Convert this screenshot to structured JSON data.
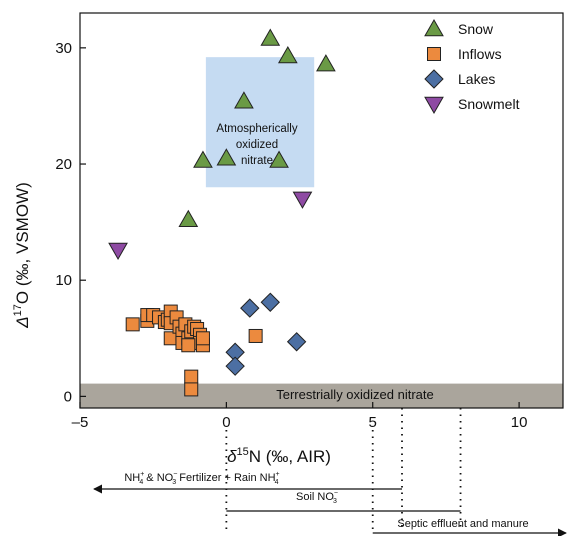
{
  "chart_data": {
    "type": "scatter",
    "xlim": [
      -5,
      11.5
    ],
    "ylim": [
      -1,
      33
    ],
    "x_ticks": [
      -5,
      0,
      5,
      10
    ],
    "y_ticks": [
      0,
      10,
      20,
      30
    ],
    "x_tick_labels": [
      "–5",
      "0",
      "5",
      "10"
    ],
    "y_tick_labels": [
      "0",
      "10",
      "20",
      "30"
    ],
    "xlabel_prefix": "δ",
    "xlabel_sup": "15",
    "xlabel_rest": "N (‰, AIR)",
    "ylabel_prefix": "Δ",
    "ylabel_sup": "17",
    "ylabel_rest": "O (‰, VSMOW)",
    "grid": false,
    "legend_position": "top-right",
    "series": [
      {
        "name": "Snow",
        "marker": "triangle-up",
        "color": "#6a9a45",
        "points": [
          [
            1.5,
            30.8
          ],
          [
            2.1,
            29.3
          ],
          [
            3.4,
            28.6
          ],
          [
            0.6,
            25.4
          ],
          [
            -0.8,
            20.3
          ],
          [
            0.0,
            20.5
          ],
          [
            1.8,
            20.3
          ],
          [
            -1.3,
            15.2
          ]
        ]
      },
      {
        "name": "Inflows",
        "marker": "square",
        "color": "#ec8a3e",
        "points": [
          [
            -3.2,
            6.2
          ],
          [
            -2.7,
            6.5
          ],
          [
            -2.7,
            7.0
          ],
          [
            -2.5,
            7.0
          ],
          [
            -2.3,
            6.8
          ],
          [
            -2.1,
            6.4
          ],
          [
            -2.0,
            6.6
          ],
          [
            -1.9,
            7.3
          ],
          [
            -1.9,
            6.3
          ],
          [
            -1.9,
            5.0
          ],
          [
            -1.7,
            6.8
          ],
          [
            -1.6,
            6.0
          ],
          [
            -1.5,
            5.4
          ],
          [
            -1.5,
            4.6
          ],
          [
            -1.4,
            6.2
          ],
          [
            -1.3,
            5.0
          ],
          [
            -1.2,
            5.6
          ],
          [
            -1.1,
            6.0
          ],
          [
            -1.0,
            5.8
          ],
          [
            -0.9,
            5.3
          ],
          [
            -0.9,
            4.6
          ],
          [
            -0.8,
            4.4
          ],
          [
            -0.8,
            5.0
          ],
          [
            -1.3,
            4.4
          ],
          [
            -1.2,
            1.7
          ],
          [
            -1.2,
            0.6
          ],
          [
            1.0,
            5.2
          ]
        ]
      },
      {
        "name": "Lakes",
        "marker": "diamond",
        "color": "#4c6fa3",
        "points": [
          [
            0.8,
            7.6
          ],
          [
            1.5,
            8.1
          ],
          [
            0.3,
            3.8
          ],
          [
            0.3,
            2.6
          ],
          [
            2.4,
            4.7
          ]
        ]
      },
      {
        "name": "Snowmelt",
        "marker": "triangle-down",
        "color": "#8e4aa3",
        "points": [
          [
            -3.7,
            12.6
          ],
          [
            2.6,
            17.0
          ]
        ]
      }
    ],
    "boxes": [
      {
        "label_lines": [
          "Atmospherically",
          "oxidized",
          "nitrate"
        ],
        "x": [
          -0.7,
          3.0
        ],
        "y": [
          18.0,
          29.2
        ],
        "color": "#c5dbf2"
      },
      {
        "label_lines": [
          "Terrestrially oxidized nitrate"
        ],
        "x": [
          -5,
          11.5
        ],
        "y": [
          -1,
          1.1
        ],
        "color": "#aaa59c"
      }
    ],
    "source_ranges": [
      {
        "label": "NH4+ & NO3− Fertilizer + Rain NH4+",
        "x": [
          -5,
          6
        ],
        "arrow": "left"
      },
      {
        "label": "Soil NO3−",
        "x": [
          0,
          8
        ],
        "arrow": "none"
      },
      {
        "label": "Septic effluent and manure",
        "x": [
          5,
          11.5
        ],
        "arrow": "right"
      }
    ]
  },
  "annotations": {
    "atmospheric_box": [
      "Atmospherically",
      "oxidized",
      "nitrate"
    ],
    "terrestrial_band": "Terrestrially oxidized nitrate",
    "range_fertilizer": {
      "a": "NH",
      "a_sup": "+",
      "a_sub": "4",
      "b": " & NO",
      "b_sup": "−",
      "b_sub": "3",
      "c": " Fertilizer + Rain NH",
      "c_sup": "+",
      "c_sub": "4"
    },
    "range_soil": {
      "a": "Soil NO",
      "a_sup": "−",
      "a_sub": "3"
    },
    "range_septic": "Septic effluent and manure"
  }
}
